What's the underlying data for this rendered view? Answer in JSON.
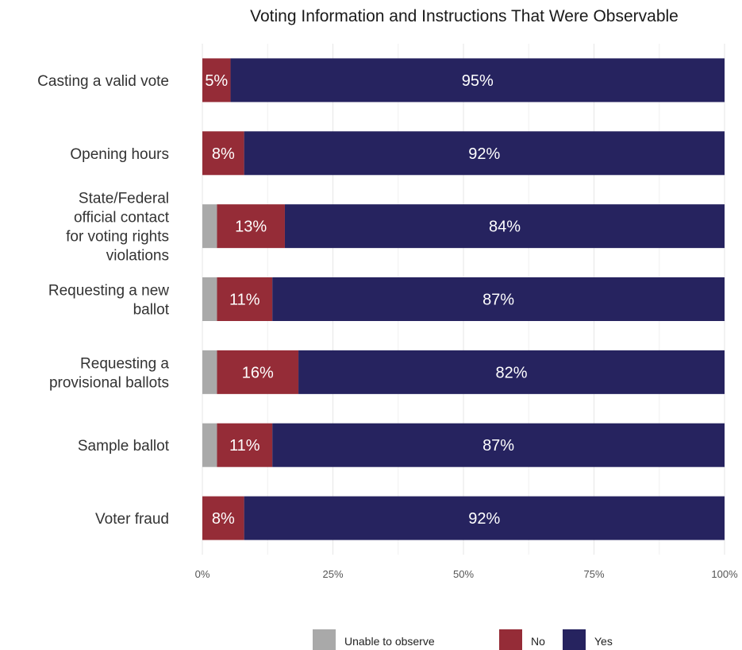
{
  "chart_data": {
    "type": "bar",
    "orientation": "horizontal",
    "stacked": true,
    "title": "Voting Information and Instructions That Were Observable",
    "categories": [
      "Casting a valid vote",
      "Opening hours",
      "State/Federal official contact for voting rights violations",
      "Requesting a new ballot",
      "Requesting a provisional ballots",
      "Sample ballot",
      "Voter fraud"
    ],
    "category_label_lines": [
      [
        "Casting a valid vote"
      ],
      [
        "Opening hours"
      ],
      [
        "State/Federal",
        "official contact",
        "for voting rights",
        "violations"
      ],
      [
        "Requesting a new",
        "ballot"
      ],
      [
        "Requesting a",
        "provisional ballots"
      ],
      [
        "Sample ballot"
      ],
      [
        "Voter fraud"
      ]
    ],
    "series": [
      {
        "name": "Unable to observe",
        "color": "#a9a9a9",
        "values": [
          0,
          0,
          2.8,
          2.8,
          2.8,
          2.8,
          0
        ],
        "labels": [
          "",
          "",
          "",
          "",
          "",
          "",
          ""
        ]
      },
      {
        "name": "No",
        "color": "#952c37",
        "values": [
          5.4,
          8.0,
          13.0,
          10.6,
          15.6,
          10.6,
          8.0
        ],
        "labels": [
          "5%",
          "8%",
          "13%",
          "11%",
          "16%",
          "11%",
          "8%"
        ]
      },
      {
        "name": "Yes",
        "color": "#26235f",
        "values": [
          94.6,
          92.0,
          84.2,
          86.6,
          81.6,
          86.6,
          92.0
        ],
        "labels": [
          "95%",
          "92%",
          "84%",
          "87%",
          "82%",
          "87%",
          "92%"
        ]
      }
    ],
    "xlim": [
      0,
      100
    ],
    "x_ticks": [
      0,
      25,
      50,
      75,
      100
    ],
    "x_tick_labels": [
      "0%",
      "25%",
      "50%",
      "75%",
      "100%"
    ],
    "grid": true,
    "legend_position": "bottom"
  }
}
